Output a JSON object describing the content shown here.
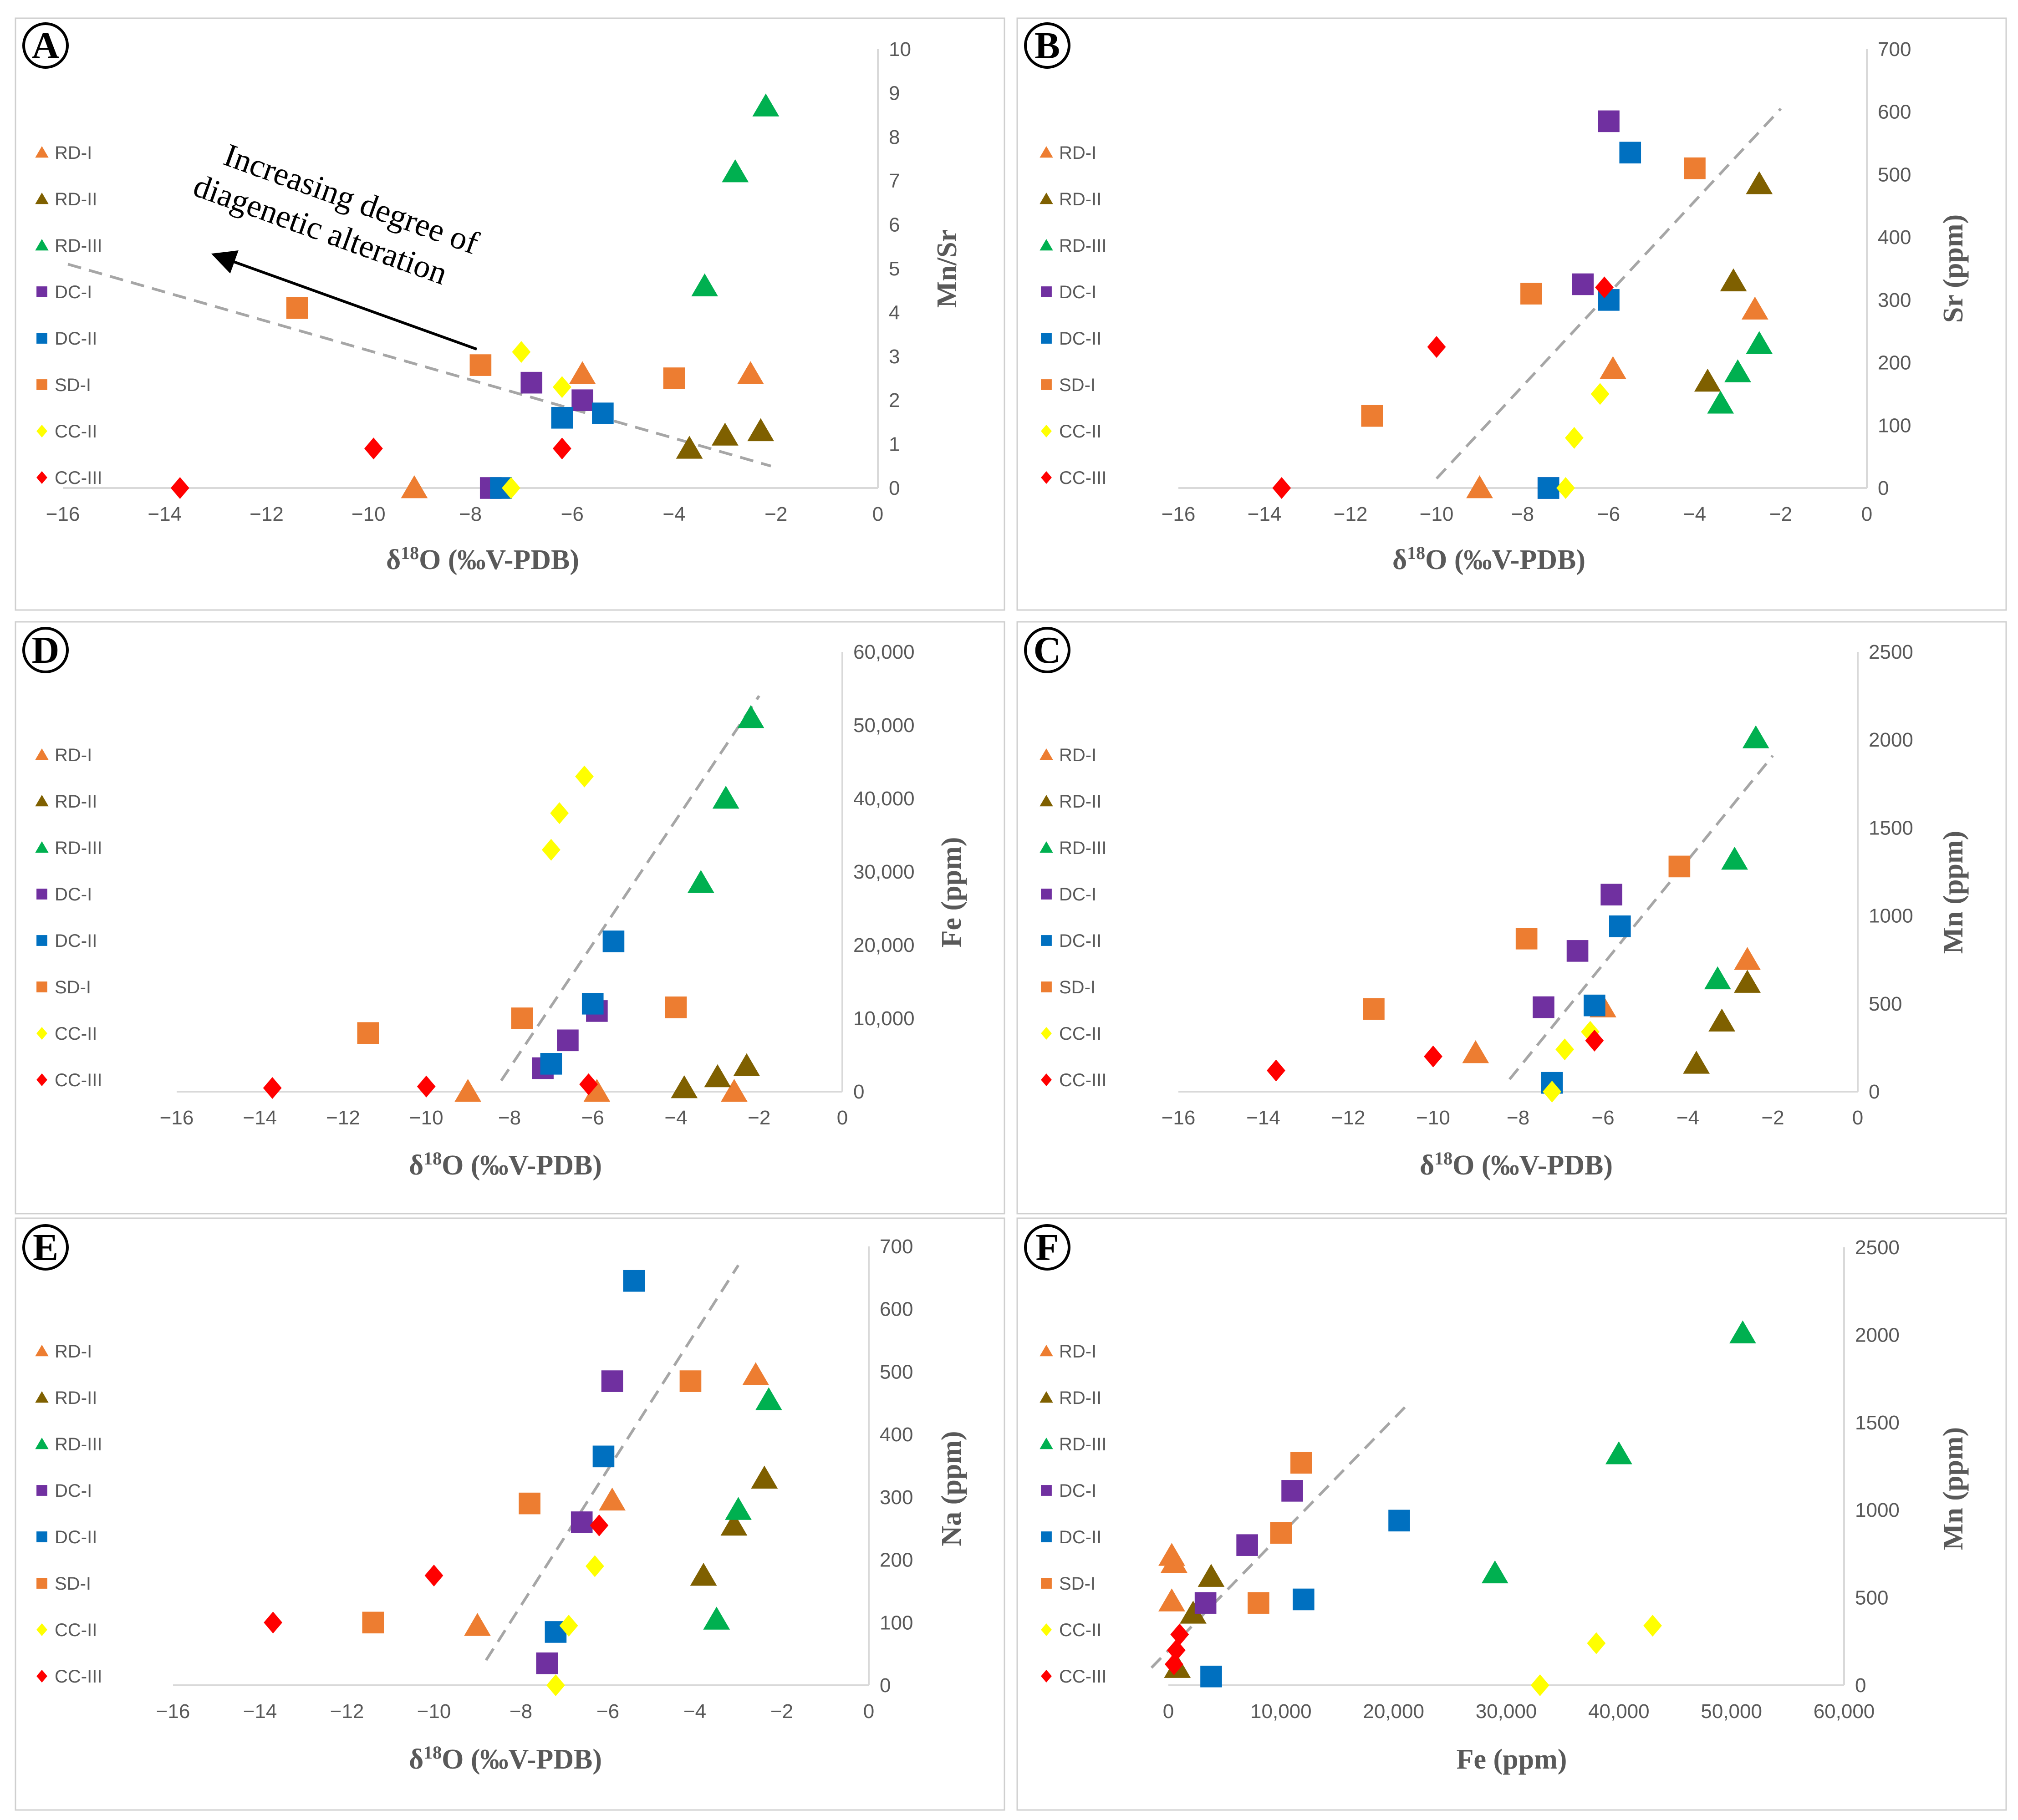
{
  "legend": [
    {
      "name": "RD-I",
      "shape": "triangle",
      "color": "#ED7D31"
    },
    {
      "name": "RD-II",
      "shape": "triangle",
      "color": "#7F6000"
    },
    {
      "name": "RD-III",
      "shape": "triangle",
      "color": "#00B050"
    },
    {
      "name": "DC-I",
      "shape": "square",
      "color": "#7030A0"
    },
    {
      "name": "DC-II",
      "shape": "square",
      "color": "#0070C0"
    },
    {
      "name": "SD-I",
      "shape": "square",
      "color": "#ED7D31"
    },
    {
      "name": "CC-II",
      "shape": "diamond",
      "color": "#FFFF00"
    },
    {
      "name": "CC-III",
      "shape": "diamond",
      "color": "#FF0000"
    }
  ],
  "chart_data": [
    {
      "id": "A",
      "label": "A",
      "type": "scatter",
      "xlabel": "δ18O (‰V-PDB)",
      "ylabel": "Mn/Sr",
      "xlim": [
        -16,
        0
      ],
      "ylim": [
        0,
        10
      ],
      "xticks": [
        "−16",
        "−14",
        "−12",
        "−10",
        "−8",
        "−6",
        "−4",
        "−2",
        "0"
      ],
      "yticks": [
        "0",
        "1",
        "2",
        "3",
        "4",
        "5",
        "6",
        "7",
        "8",
        "9",
        "10"
      ],
      "trendline": [
        [
          -15.9,
          5.1
        ],
        [
          -2.1,
          0.5
        ]
      ],
      "annotation": {
        "line1": "Increasing degree of",
        "line2": "diagenetic alteration",
        "arrow_from": [
          -8.5,
          3.2
        ],
        "arrow_to": [
          -15.1,
          5.3
        ]
      },
      "series": [
        {
          "name": "RD-I",
          "points": [
            [
              -9.1,
              0.0
            ],
            [
              -5.8,
              2.6
            ],
            [
              -2.5,
              2.6
            ]
          ]
        },
        {
          "name": "RD-II",
          "points": [
            [
              -3.7,
              0.9
            ],
            [
              -3.0,
              1.2
            ],
            [
              -2.3,
              1.3
            ]
          ]
        },
        {
          "name": "RD-III",
          "points": [
            [
              -3.4,
              4.6
            ],
            [
              -2.8,
              7.2
            ],
            [
              -2.2,
              8.7
            ]
          ]
        },
        {
          "name": "DC-I",
          "points": [
            [
              -7.6,
              0.0
            ],
            [
              -6.8,
              2.4
            ],
            [
              -5.8,
              2.0
            ]
          ]
        },
        {
          "name": "DC-II",
          "points": [
            [
              -7.4,
              0.0
            ],
            [
              -6.2,
              1.6
            ],
            [
              -5.4,
              1.7
            ]
          ]
        },
        {
          "name": "SD-I",
          "points": [
            [
              -11.4,
              4.1
            ],
            [
              -7.8,
              2.8
            ],
            [
              -4.0,
              2.5
            ]
          ]
        },
        {
          "name": "CC-II",
          "points": [
            [
              -7.2,
              0.0
            ],
            [
              -7.0,
              3.1
            ],
            [
              -6.2,
              2.3
            ]
          ]
        },
        {
          "name": "CC-III",
          "points": [
            [
              -13.7,
              0.0
            ],
            [
              -9.9,
              0.9
            ],
            [
              -6.2,
              0.9
            ]
          ]
        }
      ]
    },
    {
      "id": "B",
      "label": "B",
      "type": "scatter",
      "xlabel": "δ18O (‰V-PDB)",
      "ylabel": "Sr (ppm)",
      "xlim": [
        -16,
        0
      ],
      "ylim": [
        0,
        700
      ],
      "xticks": [
        "−16",
        "−14",
        "−12",
        "−10",
        "−8",
        "−6",
        "−4",
        "−2",
        "0"
      ],
      "yticks": [
        "0",
        "100",
        "200",
        "300",
        "400",
        "500",
        "600",
        "700"
      ],
      "trendline": [
        [
          -10.0,
          15
        ],
        [
          -2.0,
          605
        ]
      ],
      "series": [
        {
          "name": "RD-I",
          "points": [
            [
              -9.0,
              0
            ],
            [
              -5.9,
              190
            ],
            [
              -2.6,
              285
            ]
          ]
        },
        {
          "name": "RD-II",
          "points": [
            [
              -3.7,
              170
            ],
            [
              -3.1,
              330
            ],
            [
              -2.5,
              485
            ]
          ]
        },
        {
          "name": "RD-III",
          "points": [
            [
              -3.4,
              135
            ],
            [
              -3.0,
              185
            ],
            [
              -2.5,
              230
            ]
          ]
        },
        {
          "name": "DC-I",
          "points": [
            [
              -7.4,
              0
            ],
            [
              -6.6,
              325
            ],
            [
              -6.0,
              585
            ]
          ]
        },
        {
          "name": "DC-II",
          "points": [
            [
              -7.4,
              0
            ],
            [
              -6.0,
              300
            ],
            [
              -5.5,
              535
            ]
          ]
        },
        {
          "name": "SD-I",
          "points": [
            [
              -11.5,
              115
            ],
            [
              -7.8,
              310
            ],
            [
              -4.0,
              510
            ]
          ]
        },
        {
          "name": "CC-II",
          "points": [
            [
              -7.0,
              0
            ],
            [
              -6.8,
              80
            ],
            [
              -6.2,
              150
            ]
          ]
        },
        {
          "name": "CC-III",
          "points": [
            [
              -13.6,
              0
            ],
            [
              -10.0,
              225
            ],
            [
              -6.1,
              320
            ]
          ]
        }
      ]
    },
    {
      "id": "D",
      "label": "D",
      "type": "scatter",
      "xlabel": "δ18O (‰V-PDB)",
      "ylabel": "Fe (ppm)",
      "xlim": [
        -16,
        0
      ],
      "ylim": [
        0,
        60000
      ],
      "xticks": [
        "−16",
        "−14",
        "−12",
        "−10",
        "−8",
        "−6",
        "−4",
        "−2",
        "0"
      ],
      "yticks": [
        "0",
        "10,000",
        "20,000",
        "30,000",
        "40,000",
        "50,000",
        "60,000"
      ],
      "trendline": [
        [
          -8.2,
          1500
        ],
        [
          -2.0,
          54000
        ]
      ],
      "series": [
        {
          "name": "RD-I",
          "points": [
            [
              -9.0,
              0
            ],
            [
              -5.9,
              0
            ],
            [
              -2.6,
              0
            ]
          ]
        },
        {
          "name": "RD-II",
          "points": [
            [
              -3.8,
              500
            ],
            [
              -3.0,
              2000
            ],
            [
              -2.3,
              3500
            ]
          ]
        },
        {
          "name": "RD-III",
          "points": [
            [
              -3.4,
              28500
            ],
            [
              -2.8,
              40000
            ],
            [
              -2.2,
              51000
            ]
          ]
        },
        {
          "name": "DC-I",
          "points": [
            [
              -7.2,
              3200
            ],
            [
              -6.6,
              7000
            ],
            [
              -5.9,
              11000
            ]
          ]
        },
        {
          "name": "DC-II",
          "points": [
            [
              -7.0,
              3800
            ],
            [
              -6.0,
              12000
            ],
            [
              -5.5,
              20500
            ]
          ]
        },
        {
          "name": "SD-I",
          "points": [
            [
              -11.4,
              8000
            ],
            [
              -7.7,
              10000
            ],
            [
              -4.0,
              11500
            ]
          ]
        },
        {
          "name": "CC-II",
          "points": [
            [
              -7.0,
              33000
            ],
            [
              -6.8,
              38000
            ],
            [
              -6.2,
              43000
            ]
          ]
        },
        {
          "name": "CC-III",
          "points": [
            [
              -13.7,
              500
            ],
            [
              -10.0,
              700
            ],
            [
              -6.1,
              1000
            ]
          ]
        }
      ]
    },
    {
      "id": "C",
      "label": "C",
      "type": "scatter",
      "xlabel": "δ18O (‰V-PDB)",
      "ylabel": "Mn (ppm)",
      "xlim": [
        -16,
        0
      ],
      "ylim": [
        0,
        2500
      ],
      "xticks": [
        "−16",
        "−14",
        "−12",
        "−10",
        "−8",
        "−6",
        "−4",
        "−2",
        "0"
      ],
      "yticks": [
        "0",
        "500",
        "1000",
        "1500",
        "2000",
        "2500"
      ],
      "trendline": [
        [
          -8.2,
          70
        ],
        [
          -2.0,
          1910
        ]
      ],
      "series": [
        {
          "name": "RD-I",
          "points": [
            [
              -9.0,
              220
            ],
            [
              -6.0,
              480
            ],
            [
              -2.6,
              750
            ]
          ]
        },
        {
          "name": "RD-II",
          "points": [
            [
              -3.8,
              160
            ],
            [
              -3.2,
              400
            ],
            [
              -2.6,
              620
            ]
          ]
        },
        {
          "name": "RD-III",
          "points": [
            [
              -3.3,
              640
            ],
            [
              -2.9,
              1320
            ],
            [
              -2.4,
              2010
            ]
          ]
        },
        {
          "name": "DC-I",
          "points": [
            [
              -7.4,
              480
            ],
            [
              -6.6,
              800
            ],
            [
              -5.8,
              1120
            ]
          ]
        },
        {
          "name": "DC-II",
          "points": [
            [
              -7.2,
              50
            ],
            [
              -6.2,
              490
            ],
            [
              -5.6,
              940
            ]
          ]
        },
        {
          "name": "SD-I",
          "points": [
            [
              -11.4,
              470
            ],
            [
              -7.8,
              870
            ],
            [
              -4.2,
              1280
            ]
          ]
        },
        {
          "name": "CC-II",
          "points": [
            [
              -7.2,
              0
            ],
            [
              -6.9,
              240
            ],
            [
              -6.3,
              340
            ]
          ]
        },
        {
          "name": "CC-III",
          "points": [
            [
              -13.7,
              120
            ],
            [
              -10.0,
              200
            ],
            [
              -6.2,
              290
            ]
          ]
        }
      ]
    },
    {
      "id": "E",
      "label": "E",
      "type": "scatter",
      "xlabel": "δ18O (‰V-PDB)",
      "ylabel": "Na (ppm)",
      "xlim": [
        -16,
        0
      ],
      "ylim": [
        0,
        700
      ],
      "xticks": [
        "−16",
        "−14",
        "−12",
        "−10",
        "−8",
        "−6",
        "−4",
        "−2",
        "0"
      ],
      "yticks": [
        "0",
        "100",
        "200",
        "300",
        "400",
        "500",
        "600",
        "700"
      ],
      "trendline": [
        [
          -8.8,
          40
        ],
        [
          -3.0,
          670
        ]
      ],
      "series": [
        {
          "name": "RD-I",
          "points": [
            [
              -9.0,
              95
            ],
            [
              -5.9,
              295
            ],
            [
              -2.6,
              495
            ]
          ]
        },
        {
          "name": "RD-II",
          "points": [
            [
              -3.8,
              175
            ],
            [
              -3.1,
              255
            ],
            [
              -2.4,
              330
            ]
          ]
        },
        {
          "name": "RD-III",
          "points": [
            [
              -3.5,
              105
            ],
            [
              -3.0,
              280
            ],
            [
              -2.3,
              455
            ]
          ]
        },
        {
          "name": "DC-I",
          "points": [
            [
              -7.4,
              35
            ],
            [
              -6.6,
              260
            ],
            [
              -5.9,
              485
            ]
          ]
        },
        {
          "name": "DC-II",
          "points": [
            [
              -7.2,
              85
            ],
            [
              -6.1,
              365
            ],
            [
              -5.4,
              645
            ]
          ]
        },
        {
          "name": "SD-I",
          "points": [
            [
              -11.4,
              100
            ],
            [
              -7.8,
              290
            ],
            [
              -4.1,
              485
            ]
          ]
        },
        {
          "name": "CC-II",
          "points": [
            [
              -7.2,
              0
            ],
            [
              -6.9,
              95
            ],
            [
              -6.3,
              190
            ]
          ]
        },
        {
          "name": "CC-III",
          "points": [
            [
              -13.7,
              100
            ],
            [
              -10.0,
              175
            ],
            [
              -6.2,
              255
            ]
          ]
        }
      ]
    },
    {
      "id": "F",
      "label": "F",
      "type": "scatter",
      "xlabel": "Fe (ppm)",
      "ylabel": "Mn (ppm)",
      "xlim": [
        0,
        60000
      ],
      "ylim": [
        0,
        2500
      ],
      "xticks": [
        "0",
        "10,000",
        "20,000",
        "30,000",
        "40,000",
        "50,000",
        "60,000"
      ],
      "yticks": [
        "0",
        "500",
        "1000",
        "1500",
        "2000",
        "2500"
      ],
      "trendline": [
        [
          -1500,
          100
        ],
        [
          21500,
          1620
        ]
      ],
      "series": [
        {
          "name": "RD-I",
          "points": [
            [
              300,
              480
            ],
            [
              300,
              740
            ],
            [
              500,
              700
            ]
          ]
        },
        {
          "name": "RD-II",
          "points": [
            [
              800,
              100
            ],
            [
              2200,
              410
            ],
            [
              3800,
              620
            ]
          ]
        },
        {
          "name": "RD-III",
          "points": [
            [
              29000,
              640
            ],
            [
              40000,
              1320
            ],
            [
              51000,
              2010
            ]
          ]
        },
        {
          "name": "DC-I",
          "points": [
            [
              3300,
              470
            ],
            [
              7000,
              800
            ],
            [
              11000,
              1110
            ]
          ]
        },
        {
          "name": "DC-II",
          "points": [
            [
              3800,
              50
            ],
            [
              12000,
              490
            ],
            [
              20500,
              940
            ]
          ]
        },
        {
          "name": "SD-I",
          "points": [
            [
              8000,
              470
            ],
            [
              10000,
              870
            ],
            [
              11800,
              1270
            ]
          ]
        },
        {
          "name": "CC-II",
          "points": [
            [
              33000,
              0
            ],
            [
              38000,
              240
            ],
            [
              43000,
              340
            ]
          ]
        },
        {
          "name": "CC-III",
          "points": [
            [
              500,
              120
            ],
            [
              700,
              200
            ],
            [
              1000,
              290
            ]
          ]
        }
      ]
    }
  ]
}
